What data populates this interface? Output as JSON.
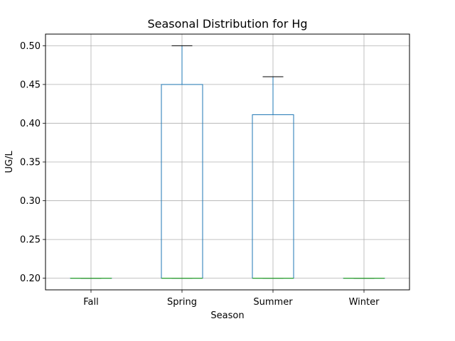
{
  "chart_data": {
    "type": "box",
    "title": "Seasonal Distribution for Hg",
    "xlabel": "Season",
    "ylabel": "UG/L",
    "ylim": [
      0.185,
      0.515
    ],
    "yticks": [
      0.2,
      0.25,
      0.3,
      0.35,
      0.4,
      0.45,
      0.5
    ],
    "ytick_labels": [
      "0.20",
      "0.25",
      "0.30",
      "0.35",
      "0.40",
      "0.45",
      "0.50"
    ],
    "grid": true,
    "categories": [
      "Fall",
      "Spring",
      "Summer",
      "Winter"
    ],
    "boxes": [
      {
        "category": "Fall",
        "whislo": 0.2,
        "q1": 0.2,
        "med": 0.2,
        "q3": 0.2,
        "whishi": 0.2
      },
      {
        "category": "Spring",
        "whislo": 0.2,
        "q1": 0.2,
        "med": 0.2,
        "q3": 0.45,
        "whishi": 0.5
      },
      {
        "category": "Summer",
        "whislo": 0.2,
        "q1": 0.2,
        "med": 0.2,
        "q3": 0.411,
        "whishi": 0.46
      },
      {
        "category": "Winter",
        "whislo": 0.2,
        "q1": 0.2,
        "med": 0.2,
        "q3": 0.2,
        "whishi": 0.2
      }
    ],
    "colors": {
      "box": "#1f77b4",
      "median": "#2ca02c",
      "whisker": "#1f77b4",
      "cap": "#000000",
      "grid": "#b0b0b0",
      "axis": "#000000"
    }
  }
}
